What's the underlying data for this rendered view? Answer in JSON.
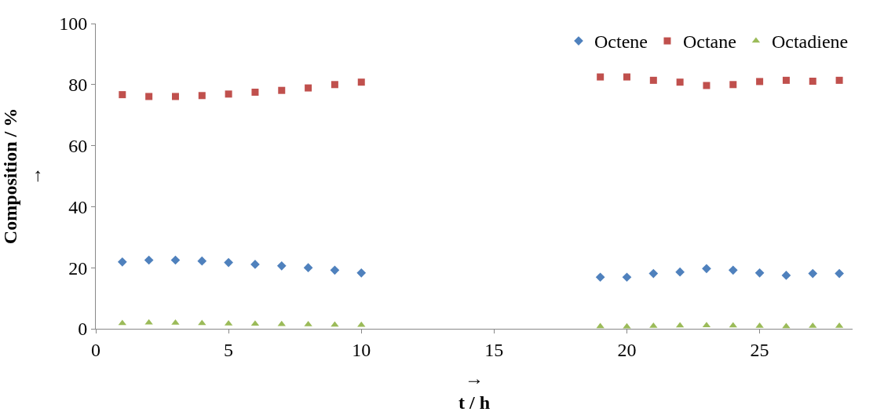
{
  "chart_data": {
    "type": "scatter",
    "xlabel": "→\nt / h",
    "ylabel": "Composition / %\n→",
    "xlim": [
      0,
      28.5
    ],
    "xticks": [
      0,
      5,
      10,
      15,
      20,
      25
    ],
    "ylim": [
      0,
      100
    ],
    "yticks": [
      0,
      20,
      40,
      60,
      80,
      100
    ],
    "legend": "top right",
    "x": [
      1,
      2,
      3,
      4,
      5,
      6,
      7,
      8,
      9,
      10,
      19,
      20,
      21,
      22,
      23,
      24,
      25,
      26,
      27,
      28
    ],
    "series": [
      {
        "name": "Octene",
        "color": "#4f81bd",
        "marker": "diamond",
        "values": [
          21.9,
          22.5,
          22.5,
          22.2,
          21.7,
          21.1,
          20.6,
          20.0,
          19.2,
          18.3,
          16.9,
          16.9,
          18.1,
          18.6,
          19.7,
          19.2,
          18.3,
          17.5,
          18.1,
          18.1
        ]
      },
      {
        "name": "Octane",
        "color": "#c0504d",
        "marker": "square",
        "values": [
          76.7,
          76.1,
          76.1,
          76.4,
          76.9,
          77.5,
          78.1,
          78.9,
          80.0,
          80.8,
          82.5,
          82.5,
          81.4,
          80.8,
          79.7,
          80.0,
          81.0,
          81.4,
          81.1,
          81.4
        ]
      },
      {
        "name": "Octadiene",
        "color": "#9bbb59",
        "marker": "triangle",
        "values": [
          1.8,
          2.0,
          1.9,
          1.8,
          1.7,
          1.6,
          1.5,
          1.4,
          1.3,
          1.2,
          0.8,
          0.7,
          0.9,
          1.0,
          1.1,
          1.0,
          0.9,
          0.8,
          0.9,
          0.9
        ]
      }
    ]
  }
}
